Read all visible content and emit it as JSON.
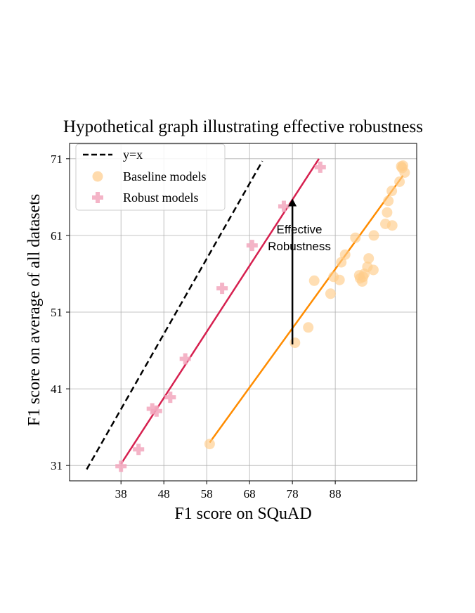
{
  "chart_data": {
    "type": "scatter",
    "title": "Hypothetical graph illustrating effective robustness",
    "xlabel": "F1 score on SQuAD",
    "ylabel": "F1 score on average of all datasets",
    "xlim": [
      26,
      107
    ],
    "ylim": [
      29,
      73
    ],
    "xticks": [
      38,
      48,
      58,
      68,
      78,
      88
    ],
    "yticks": [
      31,
      41,
      51,
      61,
      71
    ],
    "grid": true,
    "legend_position": "top-left",
    "series": [
      {
        "name": "y=x",
        "kind": "line",
        "style": "dashed",
        "color": "#000000",
        "x": [
          30,
          71
        ],
        "y": [
          30.5,
          70.7
        ]
      },
      {
        "name": "Baseline models",
        "kind": "scatter",
        "marker": "circle",
        "color": "#ffcc8a",
        "x": [
          58.7,
          78.6,
          81.7,
          83.1,
          86.9,
          87.6,
          89.0,
          89.4,
          90.3,
          92.7,
          95.5,
          96.9,
          93.6,
          93.8,
          94.3,
          94.5,
          94.8,
          95.8,
          97.0,
          101.3,
          99.7,
          100.1,
          100.4,
          101.2,
          103.0,
          103.4,
          103.8,
          104.2,
          103.6
        ],
        "y": [
          33.8,
          47.0,
          49.0,
          55.1,
          53.4,
          55.6,
          55.2,
          57.5,
          58.5,
          60.7,
          56.9,
          56.5,
          55.8,
          55.4,
          55.0,
          55.6,
          56.0,
          58.0,
          61.0,
          62.3,
          62.5,
          64.0,
          65.5,
          66.8,
          68.0,
          70.0,
          70.1,
          69.2,
          69.8
        ]
      },
      {
        "name": "Robust models",
        "kind": "scatter",
        "marker": "plus",
        "color": "#f2a7bd",
        "x": [
          38.0,
          42.1,
          45.3,
          46.3,
          49.5,
          53.0,
          61.6,
          68.6,
          76.0,
          84.5
        ],
        "y": [
          30.9,
          33.1,
          38.4,
          38.1,
          39.9,
          44.9,
          54.1,
          59.7,
          64.8,
          69.9
        ]
      },
      {
        "name": "",
        "kind": "line",
        "color": "#d6204f",
        "x": [
          38.0,
          84.2
        ],
        "y": [
          31.2,
          71.0
        ]
      },
      {
        "name": "",
        "kind": "line",
        "color": "#ff8c00",
        "x": [
          58.7,
          103.8
        ],
        "y": [
          34.0,
          68.8
        ]
      }
    ],
    "annotation": {
      "lines": [
        "Effective",
        "Robustness"
      ],
      "arrow_x": 78,
      "arrow_from_y": 46.8,
      "arrow_to_y": 65.8
    }
  }
}
